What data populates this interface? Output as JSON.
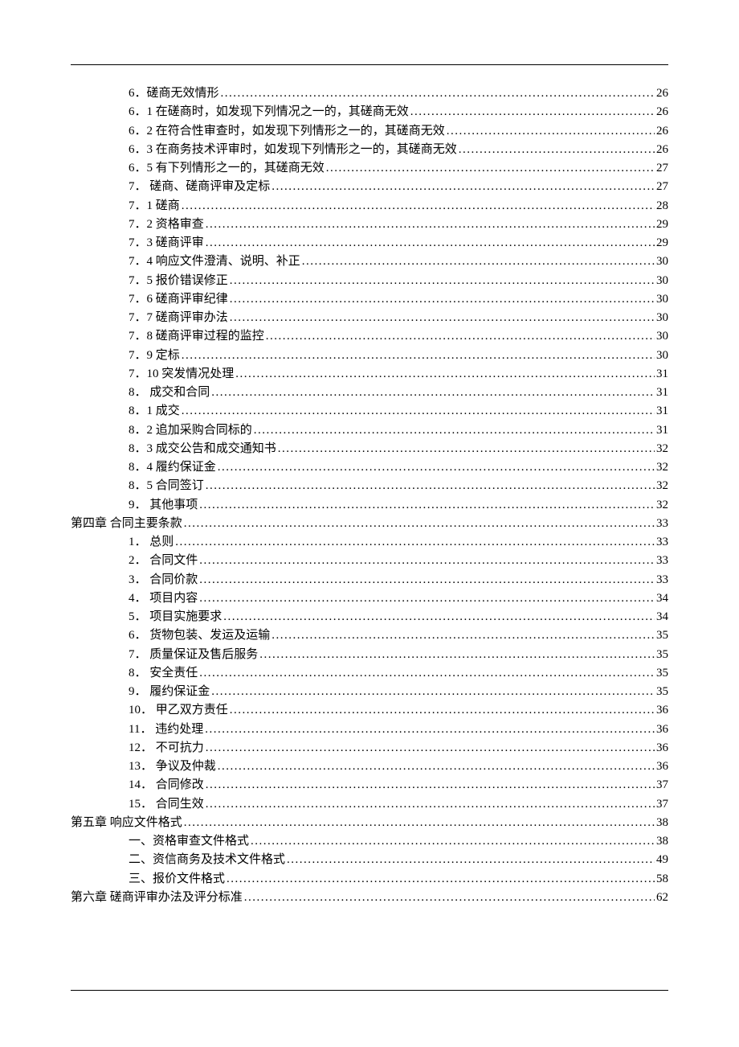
{
  "toc": [
    {
      "indent": 1,
      "label": "6．磋商无效情形",
      "page": "26"
    },
    {
      "indent": 1,
      "label": "6．1 在磋商时，如发现下列情况之一的，其磋商无效",
      "page": "26"
    },
    {
      "indent": 1,
      "label": "6．2 在符合性审查时，如发现下列情形之一的，其磋商无效",
      "page": "26"
    },
    {
      "indent": 1,
      "label": "6．3 在商务技术评审时，如发现下列情形之一的，其磋商无效",
      "page": "26"
    },
    {
      "indent": 1,
      "label": "6．5 有下列情形之一的，其磋商无效",
      "page": "27"
    },
    {
      "indent": 1,
      "label": "7． 磋商、磋商评审及定标",
      "page": "27"
    },
    {
      "indent": 1,
      "label": "7．1 磋商",
      "page": "28"
    },
    {
      "indent": 1,
      "label": "7．2 资格审查",
      "page": "29"
    },
    {
      "indent": 1,
      "label": "7．3 磋商评审",
      "page": "29"
    },
    {
      "indent": 1,
      "label": "7．4 响应文件澄清、说明、补正",
      "page": "30"
    },
    {
      "indent": 1,
      "label": "7．5 报价错误修正",
      "page": "30"
    },
    {
      "indent": 1,
      "label": "7．6 磋商评审纪律",
      "page": "30"
    },
    {
      "indent": 1,
      "label": "7．7 磋商评审办法",
      "page": "30"
    },
    {
      "indent": 1,
      "label": "7．8 磋商评审过程的监控",
      "page": "30"
    },
    {
      "indent": 1,
      "label": "7．9 定标",
      "page": "30"
    },
    {
      "indent": 1,
      "label": "7．10 突发情况处理",
      "page": "31"
    },
    {
      "indent": 1,
      "label": "8． 成交和合同",
      "page": "31"
    },
    {
      "indent": 1,
      "label": "8．1 成交",
      "page": "31"
    },
    {
      "indent": 1,
      "label": "8．2 追加采购合同标的",
      "page": "31"
    },
    {
      "indent": 1,
      "label": "8．3 成交公告和成交通知书",
      "page": "32"
    },
    {
      "indent": 1,
      "label": "8．4 履约保证金",
      "page": "32"
    },
    {
      "indent": 1,
      "label": "8．5 合同签订",
      "page": "32"
    },
    {
      "indent": 1,
      "label": "9． 其他事项",
      "page": "32"
    },
    {
      "indent": 0,
      "label": "第四章  合同主要条款",
      "page": "33"
    },
    {
      "indent": 1,
      "label": "1． 总则",
      "page": "33"
    },
    {
      "indent": 1,
      "label": "2． 合同文件",
      "page": "33"
    },
    {
      "indent": 1,
      "label": "3． 合同价款",
      "page": "33"
    },
    {
      "indent": 1,
      "label": "4． 项目内容",
      "page": "34"
    },
    {
      "indent": 1,
      "label": "5． 项目实施要求",
      "page": "34"
    },
    {
      "indent": 1,
      "label": "6． 货物包装、发运及运输",
      "page": "35"
    },
    {
      "indent": 1,
      "label": "7． 质量保证及售后服务",
      "page": "35"
    },
    {
      "indent": 1,
      "label": "8． 安全责任",
      "page": "35"
    },
    {
      "indent": 1,
      "label": "9． 履约保证金",
      "page": "35"
    },
    {
      "indent": 1,
      "label": "10． 甲乙双方责任",
      "page": "36"
    },
    {
      "indent": 1,
      "label": "11． 违约处理",
      "page": "36"
    },
    {
      "indent": 1,
      "label": "12． 不可抗力",
      "page": "36"
    },
    {
      "indent": 1,
      "label": "13． 争议及仲裁",
      "page": "36"
    },
    {
      "indent": 1,
      "label": "14． 合同修改",
      "page": "37"
    },
    {
      "indent": 1,
      "label": "15． 合同生效",
      "page": "37"
    },
    {
      "indent": 0,
      "label": "第五章  响应文件格式",
      "page": "38"
    },
    {
      "indent": 2,
      "label": "一、资格审查文件格式",
      "page": "38"
    },
    {
      "indent": 2,
      "label": "二、资信商务及技术文件格式",
      "page": "49"
    },
    {
      "indent": 2,
      "label": "三、报价文件格式",
      "page": "58"
    },
    {
      "indent": 0,
      "label": "第六章  磋商评审办法及评分标准",
      "page": "62"
    }
  ]
}
